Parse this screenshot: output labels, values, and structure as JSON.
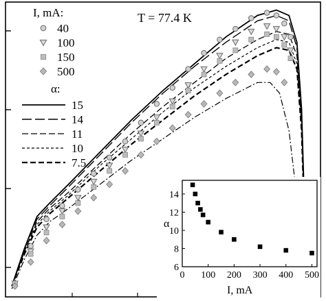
{
  "chart_data": [
    {
      "type": "scatter",
      "annotation_text": "T = 77.4 K",
      "legend_current_title": "I, mA:",
      "legend_alpha_title": "α:",
      "point_series": [
        {
          "name": "40",
          "marker": "circle",
          "color": "#8c8c8c",
          "x": [
            0.03,
            0.08,
            0.13,
            0.18,
            0.23,
            0.28,
            0.33,
            0.38,
            0.43,
            0.48,
            0.53,
            0.58,
            0.63,
            0.68,
            0.73,
            0.78,
            0.83,
            0.86,
            0.885,
            0.905
          ],
          "y": [
            0.05,
            0.19,
            0.29,
            0.34,
            0.4,
            0.46,
            0.52,
            0.58,
            0.65,
            0.72,
            0.78,
            0.85,
            0.91,
            0.96,
            1.0,
            1.04,
            1.06,
            1.05,
            1.02,
            0.97
          ]
        },
        {
          "name": "100",
          "marker": "triangle-down",
          "color": "#8c8c8c",
          "x": [
            0.03,
            0.08,
            0.13,
            0.18,
            0.23,
            0.28,
            0.33,
            0.38,
            0.43,
            0.48,
            0.53,
            0.58,
            0.63,
            0.68,
            0.73,
            0.78,
            0.83,
            0.86,
            0.885,
            0.905
          ],
          "y": [
            0.05,
            0.17,
            0.26,
            0.32,
            0.37,
            0.43,
            0.49,
            0.55,
            0.61,
            0.67,
            0.73,
            0.79,
            0.85,
            0.9,
            0.95,
            0.99,
            1.01,
            1.0,
            0.97,
            0.92
          ]
        },
        {
          "name": "150",
          "marker": "square",
          "color": "#a6a6a6",
          "x": [
            0.03,
            0.08,
            0.13,
            0.18,
            0.23,
            0.28,
            0.33,
            0.38,
            0.43,
            0.48,
            0.53,
            0.58,
            0.63,
            0.68,
            0.73,
            0.78,
            0.83,
            0.86,
            0.885,
            0.905
          ],
          "y": [
            0.05,
            0.16,
            0.24,
            0.3,
            0.35,
            0.41,
            0.47,
            0.53,
            0.59,
            0.65,
            0.71,
            0.77,
            0.83,
            0.88,
            0.92,
            0.96,
            0.98,
            0.97,
            0.94,
            0.89
          ]
        },
        {
          "name": "500",
          "marker": "diamond",
          "color": "#9a9a9a",
          "x": [
            0.03,
            0.08,
            0.13,
            0.18,
            0.23,
            0.28,
            0.33,
            0.38,
            0.43,
            0.48,
            0.53,
            0.58,
            0.63,
            0.68,
            0.73,
            0.78,
            0.83,
            0.86,
            0.885
          ],
          "y": [
            0.04,
            0.13,
            0.21,
            0.27,
            0.32,
            0.37,
            0.42,
            0.47,
            0.53,
            0.58,
            0.63,
            0.68,
            0.72,
            0.76,
            0.8,
            0.83,
            0.85,
            0.84,
            0.8
          ]
        }
      ],
      "line_series": [
        {
          "name": "15",
          "dash": "solid",
          "x": [
            0.02,
            0.06,
            0.1,
            0.14,
            0.2,
            0.3,
            0.4,
            0.5,
            0.6,
            0.7,
            0.8,
            0.86,
            0.9,
            0.925,
            0.94,
            0.95
          ],
          "y": [
            0.04,
            0.18,
            0.3,
            0.35,
            0.42,
            0.54,
            0.66,
            0.77,
            0.87,
            0.97,
            1.05,
            1.07,
            1.05,
            0.95,
            0.7,
            0.3
          ]
        },
        {
          "name": "14",
          "dash": "long-dash",
          "x": [
            0.02,
            0.06,
            0.1,
            0.14,
            0.2,
            0.3,
            0.4,
            0.5,
            0.6,
            0.7,
            0.8,
            0.86,
            0.9,
            0.925,
            0.94,
            0.95
          ],
          "y": [
            0.04,
            0.18,
            0.29,
            0.34,
            0.41,
            0.53,
            0.65,
            0.76,
            0.86,
            0.95,
            1.03,
            1.05,
            1.03,
            0.93,
            0.68,
            0.28
          ]
        },
        {
          "name": "11",
          "dash": "medium-dash",
          "x": [
            0.02,
            0.06,
            0.1,
            0.14,
            0.2,
            0.3,
            0.4,
            0.5,
            0.6,
            0.7,
            0.8,
            0.86,
            0.9,
            0.925,
            0.94,
            0.95
          ],
          "y": [
            0.04,
            0.17,
            0.28,
            0.33,
            0.39,
            0.5,
            0.61,
            0.71,
            0.8,
            0.89,
            0.96,
            0.99,
            0.98,
            0.9,
            0.66,
            0.28
          ]
        },
        {
          "name": "10",
          "dash": "short-dash",
          "x": [
            0.02,
            0.06,
            0.1,
            0.14,
            0.2,
            0.3,
            0.4,
            0.5,
            0.6,
            0.7,
            0.8,
            0.86,
            0.9,
            0.925,
            0.94,
            0.95
          ],
          "y": [
            0.04,
            0.17,
            0.27,
            0.32,
            0.38,
            0.49,
            0.59,
            0.69,
            0.78,
            0.86,
            0.93,
            0.96,
            0.95,
            0.87,
            0.64,
            0.27
          ]
        },
        {
          "name": "7.5",
          "dash": "bold-dash",
          "x": [
            0.02,
            0.06,
            0.1,
            0.14,
            0.2,
            0.3,
            0.4,
            0.5,
            0.6,
            0.7,
            0.8,
            0.86,
            0.9,
            0.925,
            0.94,
            0.95
          ],
          "y": [
            0.04,
            0.16,
            0.26,
            0.31,
            0.37,
            0.47,
            0.57,
            0.66,
            0.75,
            0.83,
            0.9,
            0.93,
            0.92,
            0.85,
            0.62,
            0.26
          ]
        },
        {
          "name": "",
          "dash": "dash-dot",
          "x": [
            0.02,
            0.06,
            0.1,
            0.14,
            0.2,
            0.3,
            0.4,
            0.5,
            0.6,
            0.7,
            0.8,
            0.84,
            0.87,
            0.9,
            0.92,
            0.935
          ],
          "y": [
            0.03,
            0.14,
            0.23,
            0.28,
            0.33,
            0.42,
            0.51,
            0.59,
            0.67,
            0.74,
            0.8,
            0.8,
            0.76,
            0.62,
            0.42,
            0.2
          ]
        }
      ],
      "xlim": [
        0,
        1
      ],
      "ylim": [
        0,
        1.1
      ],
      "grid": false
    },
    {
      "type": "scatter",
      "xlabel": "I, mA",
      "ylabel": "α",
      "xlim": [
        0,
        520
      ],
      "ylim": [
        6,
        15.5
      ],
      "x_ticks": [
        "0",
        "100",
        "200",
        "300",
        "400",
        "500"
      ],
      "y_ticks": [
        "6",
        "8",
        "10",
        "12",
        "14"
      ],
      "series": [
        {
          "marker": "square",
          "color": "#000000",
          "x": [
            40,
            50,
            60,
            70,
            80,
            100,
            150,
            200,
            300,
            400,
            500
          ],
          "y": [
            15.0,
            14.0,
            13.0,
            12.3,
            11.7,
            10.9,
            9.8,
            9.0,
            8.2,
            7.8,
            7.5
          ]
        }
      ]
    }
  ]
}
